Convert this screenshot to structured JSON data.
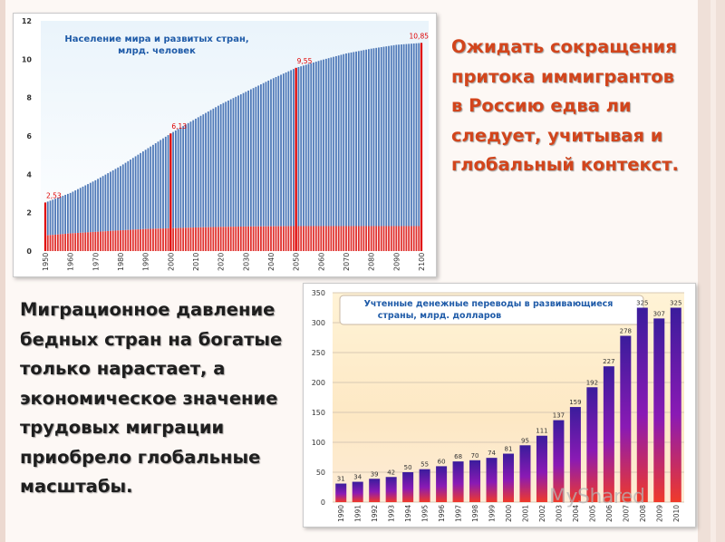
{
  "texts": {
    "top_lines": [
      "Ожидать сокращения",
      "притока иммигрантов",
      "в Россию  едва ли",
      "следует, учитывая и",
      "глобальный контекст."
    ],
    "bottom_lines": [
      "Миграционное давление",
      "бедных стран на богатые",
      "только нарастает, а",
      "экономическое значение",
      "трудовых миграции",
      "приобрело глобальные",
      "масштабы."
    ]
  },
  "watermark": "MyShared",
  "colors": {
    "accent_text": "#d2451c",
    "population_blue": "#4f79b8",
    "population_red": "#e0302d",
    "marker_red": "#e00000",
    "plot_bg_top": "#e8f3fb",
    "title_blue": "#1f5ba8"
  },
  "chart_data": [
    {
      "type": "area",
      "title": "Население мира и развитых стран,\nмлрд. человек",
      "title_lines": [
        "Население мира и развитых стран,",
        "млрд. человек"
      ],
      "x": [
        1950,
        1960,
        1970,
        1980,
        1990,
        2000,
        2010,
        2020,
        2030,
        2040,
        2050,
        2060,
        2070,
        2080,
        2090,
        2100
      ],
      "xlim": [
        1950,
        2100
      ],
      "ylim": [
        0,
        12
      ],
      "yticks": [
        0,
        2,
        4,
        6,
        8,
        10,
        12
      ],
      "series": [
        {
          "values": [
            2.53,
            3.03,
            3.69,
            4.43,
            5.28,
            6.13,
            6.9,
            7.65,
            8.3,
            8.95,
            9.55,
            9.95,
            10.3,
            10.55,
            10.75,
            10.85
          ]
        },
        {
          "values": [
            0.81,
            0.92,
            1.0,
            1.08,
            1.15,
            1.19,
            1.23,
            1.26,
            1.28,
            1.29,
            1.3,
            1.3,
            1.3,
            1.3,
            1.3,
            1.3
          ]
        }
      ],
      "markers": [
        {
          "x": 1950,
          "label": "2,53"
        },
        {
          "x": 2000,
          "label": "6,13"
        },
        {
          "x": 2050,
          "label": "9,55"
        },
        {
          "x": 2100,
          "label": "10,85"
        }
      ],
      "grid": false
    },
    {
      "type": "bar",
      "title_lines": [
        "Учтенные денежные переводы в развивающиеся",
        "страны, млрд. долларов"
      ],
      "categories": [
        "1990",
        "1991",
        "1992",
        "1993",
        "1994",
        "1995",
        "1996",
        "1997",
        "1998",
        "1999",
        "2000",
        "2001",
        "2002",
        "2003",
        "2004",
        "2005",
        "2006",
        "2007",
        "2008",
        "2009",
        "2010"
      ],
      "values": [
        31,
        34,
        39,
        42,
        50,
        55,
        60,
        68,
        70,
        74,
        81,
        95,
        111,
        137,
        159,
        192,
        227,
        278,
        325,
        307,
        325
      ],
      "ylim": [
        0,
        350
      ],
      "yticks": [
        0,
        50,
        100,
        150,
        200,
        250,
        300,
        350
      ],
      "grid": true
    }
  ]
}
